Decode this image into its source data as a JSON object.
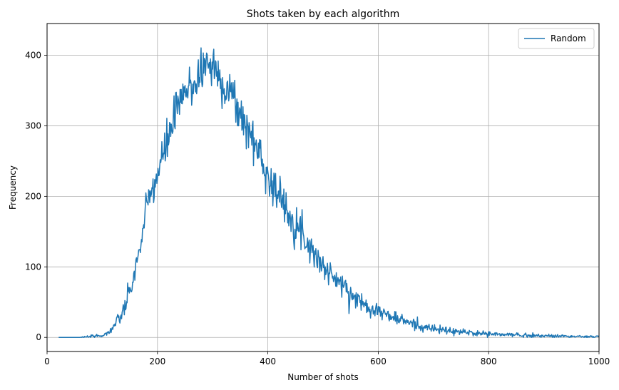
{
  "chart_data": {
    "type": "line",
    "title": "Shots taken by each algorithm",
    "xlabel": "Number of shots",
    "ylabel": "Frequency",
    "xlim": [
      0,
      1000
    ],
    "ylim": [
      -20,
      445
    ],
    "xticks": [
      0,
      200,
      400,
      600,
      800,
      1000
    ],
    "yticks": [
      0,
      100,
      200,
      300,
      400
    ],
    "grid": true,
    "legend_position": "top-right",
    "series": [
      {
        "name": "Random",
        "color": "#1f77b4",
        "x_range": [
          21,
          1000
        ],
        "key_points": [
          [
            21,
            0
          ],
          [
            60,
            0
          ],
          [
            80,
            1
          ],
          [
            100,
            3
          ],
          [
            110,
            6
          ],
          [
            120,
            15
          ],
          [
            130,
            25
          ],
          [
            140,
            40
          ],
          [
            150,
            65
          ],
          [
            160,
            95
          ],
          [
            170,
            135
          ],
          [
            180,
            180
          ],
          [
            190,
            210
          ],
          [
            200,
            230
          ],
          [
            210,
            255
          ],
          [
            220,
            285
          ],
          [
            230,
            310
          ],
          [
            240,
            330
          ],
          [
            250,
            345
          ],
          [
            260,
            355
          ],
          [
            270,
            365
          ],
          [
            280,
            380
          ],
          [
            290,
            390
          ],
          [
            300,
            385
          ],
          [
            310,
            370
          ],
          [
            320,
            360
          ],
          [
            330,
            350
          ],
          [
            340,
            335
          ],
          [
            350,
            315
          ],
          [
            360,
            300
          ],
          [
            370,
            285
          ],
          [
            380,
            270
          ],
          [
            390,
            250
          ],
          [
            400,
            230
          ],
          [
            420,
            200
          ],
          [
            440,
            175
          ],
          [
            460,
            150
          ],
          [
            480,
            125
          ],
          [
            500,
            100
          ],
          [
            520,
            85
          ],
          [
            540,
            70
          ],
          [
            560,
            55
          ],
          [
            580,
            45
          ],
          [
            600,
            38
          ],
          [
            620,
            30
          ],
          [
            640,
            25
          ],
          [
            660,
            20
          ],
          [
            680,
            15
          ],
          [
            700,
            12
          ],
          [
            720,
            10
          ],
          [
            740,
            8
          ],
          [
            760,
            7
          ],
          [
            780,
            6
          ],
          [
            800,
            5
          ],
          [
            820,
            4
          ],
          [
            840,
            4
          ],
          [
            860,
            3
          ],
          [
            880,
            3
          ],
          [
            900,
            2
          ],
          [
            920,
            2
          ],
          [
            940,
            2
          ],
          [
            960,
            1
          ],
          [
            980,
            1
          ],
          [
            1000,
            1
          ]
        ]
      }
    ]
  }
}
